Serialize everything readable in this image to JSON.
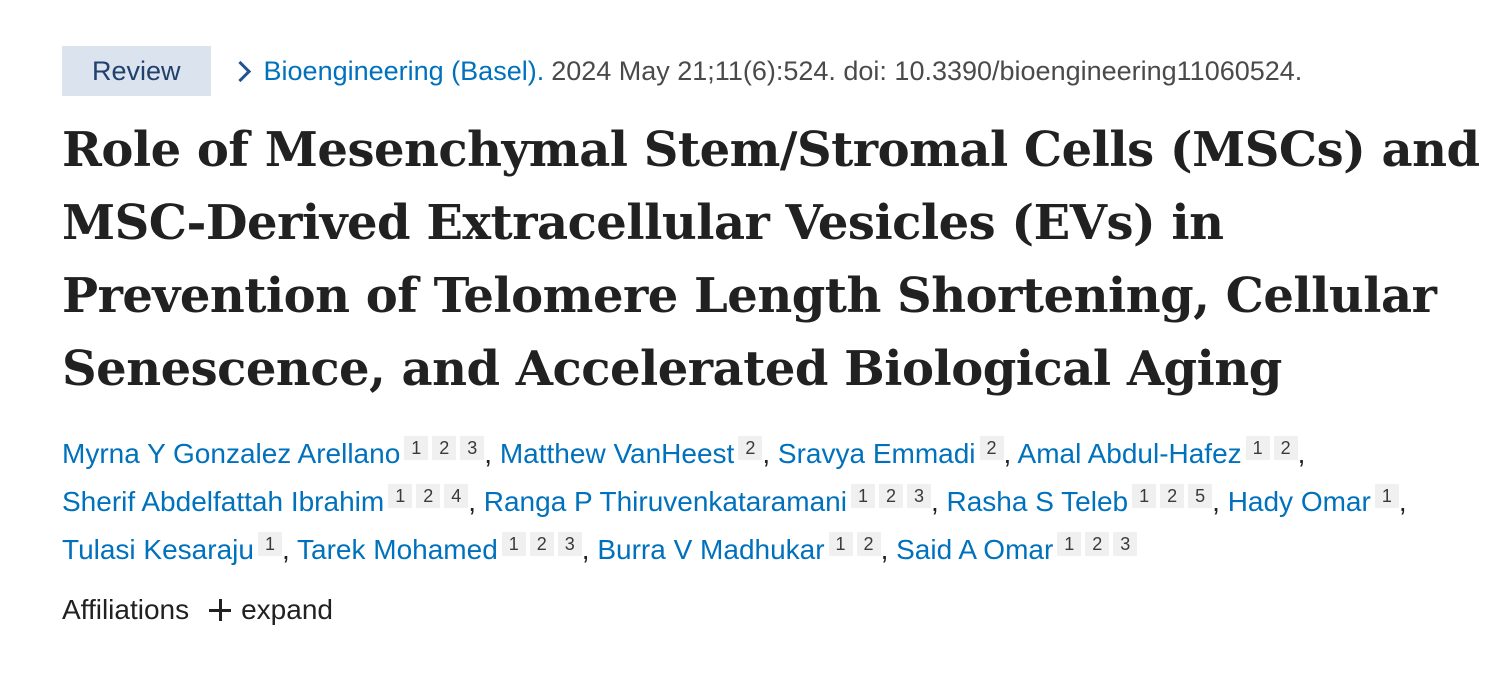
{
  "header": {
    "badge": "Review",
    "journal": "Bioengineering (Basel).",
    "citation": "2024 May 21;11(6):524. doi: 10.3390/bioengineering11060524."
  },
  "title": "Role of Mesenchymal Stem/Stromal Cells (MSCs) and MSC-Derived Extracellular Vesicles (EVs) in Prevention of Telomere Length Shortening, Cellular Senescence, and Accelerated Biological Aging",
  "authors": [
    {
      "name": "Myrna Y Gonzalez Arellano",
      "affiliations": [
        "1",
        "2",
        "3"
      ]
    },
    {
      "name": "Matthew VanHeest",
      "affiliations": [
        "2"
      ]
    },
    {
      "name": "Sravya Emmadi",
      "affiliations": [
        "2"
      ]
    },
    {
      "name": "Amal Abdul-Hafez",
      "affiliations": [
        "1",
        "2"
      ]
    },
    {
      "name": "Sherif Abdelfattah Ibrahim",
      "affiliations": [
        "1",
        "2",
        "4"
      ]
    },
    {
      "name": "Ranga P Thiruvenkataramani",
      "affiliations": [
        "1",
        "2",
        "3"
      ]
    },
    {
      "name": "Rasha S Teleb",
      "affiliations": [
        "1",
        "2",
        "5"
      ]
    },
    {
      "name": "Hady Omar",
      "affiliations": [
        "1"
      ]
    },
    {
      "name": "Tulasi Kesaraju",
      "affiliations": [
        "1"
      ]
    },
    {
      "name": "Tarek Mohamed",
      "affiliations": [
        "1",
        "2",
        "3"
      ]
    },
    {
      "name": "Burra V Madhukar",
      "affiliations": [
        "1",
        "2"
      ]
    },
    {
      "name": "Said A Omar",
      "affiliations": [
        "1",
        "2",
        "3"
      ]
    }
  ],
  "separator": ",",
  "affiliations_section": {
    "label": "Affiliations",
    "expand_label": "expand",
    "expand_icon": "plus-icon"
  },
  "colors": {
    "link": "#0071bc",
    "badge_bg": "#dbe3ee",
    "badge_text": "#20406d",
    "text": "#212121",
    "sup_bg": "#f0f0f0"
  }
}
